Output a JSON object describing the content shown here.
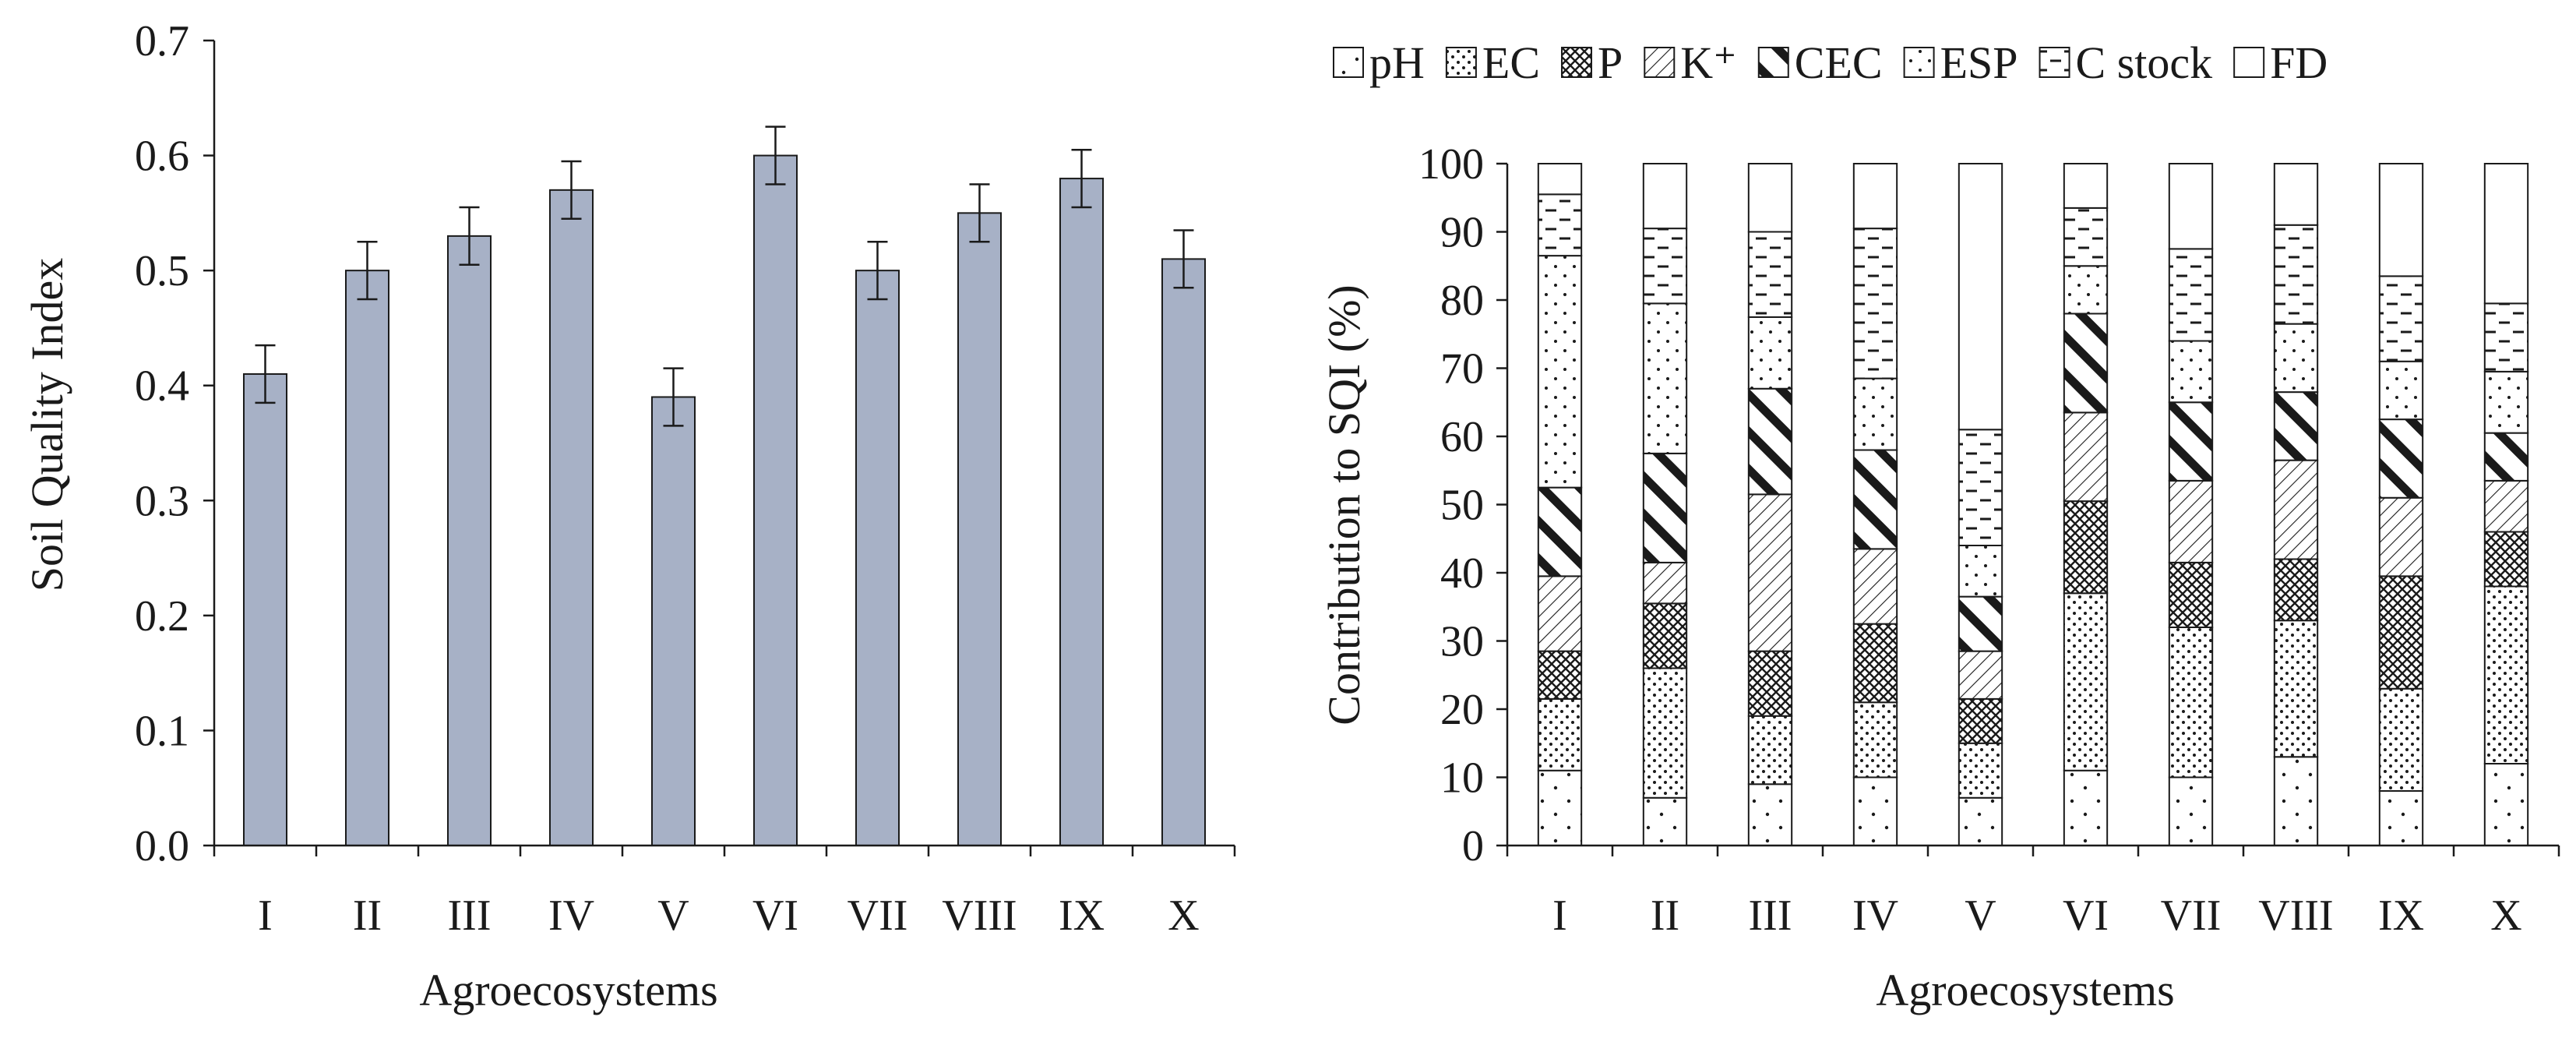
{
  "colors": {
    "bar_fill": "#a7b1c6",
    "bar_stroke": "#1a1a1a",
    "axis": "#1a1a1a",
    "background": "#ffffff"
  },
  "chart_data": [
    {
      "type": "bar",
      "title": "",
      "xlabel": "Agroecosystems",
      "ylabel": "Soil Quality Index",
      "ylim": [
        0.0,
        0.7
      ],
      "yticks": [
        "0.0",
        "0.1",
        "0.2",
        "0.3",
        "0.4",
        "0.5",
        "0.6",
        "0.7"
      ],
      "categories": [
        "I",
        "II",
        "III",
        "IV",
        "V",
        "VI",
        "VII",
        "VIII",
        "IX",
        "X"
      ],
      "values": [
        0.41,
        0.5,
        0.53,
        0.57,
        0.39,
        0.6,
        0.5,
        0.55,
        0.58,
        0.51
      ],
      "errors": [
        0.025,
        0.025,
        0.025,
        0.025,
        0.025,
        0.025,
        0.025,
        0.025,
        0.025,
        0.025
      ]
    },
    {
      "type": "bar",
      "stacked": true,
      "title": "",
      "xlabel": "Agroecosystems",
      "ylabel": "Contribution to SQI (%)",
      "ylim": [
        0,
        100
      ],
      "yticks": [
        "0",
        "10",
        "20",
        "30",
        "40",
        "50",
        "60",
        "70",
        "80",
        "90",
        "100"
      ],
      "categories": [
        "I",
        "II",
        "III",
        "IV",
        "V",
        "VI",
        "VII",
        "VIII",
        "IX",
        "X"
      ],
      "legend_position": "top",
      "series": [
        {
          "name": "pH",
          "pattern": "dots-sparse",
          "values": [
            11,
            7,
            9,
            10,
            7,
            11,
            10,
            13,
            8,
            12
          ]
        },
        {
          "name": "EC",
          "pattern": "dots-dense",
          "values": [
            10.5,
            19,
            10,
            11,
            8,
            26,
            22,
            20,
            15,
            26
          ]
        },
        {
          "name": "P",
          "pattern": "crosshatch",
          "values": [
            7,
            9.5,
            9.5,
            11.5,
            6.5,
            13.5,
            9.5,
            9,
            16.5,
            8
          ]
        },
        {
          "name": "K⁺",
          "pattern": "diagonal-thin",
          "values": [
            11,
            6,
            23,
            11,
            7,
            13,
            12,
            14.5,
            11.5,
            7.5
          ]
        },
        {
          "name": "CEC",
          "pattern": "diagonal-bold",
          "values": [
            13,
            16,
            15.5,
            14.5,
            8,
            14.5,
            11.5,
            10,
            11.5,
            7
          ]
        },
        {
          "name": "ESP",
          "pattern": "dots-small",
          "values": [
            34,
            22,
            10.5,
            10.5,
            7.5,
            7,
            9,
            10,
            8.5,
            9
          ]
        },
        {
          "name": "C stock",
          "pattern": "dashes",
          "values": [
            9,
            11,
            12.5,
            22,
            17,
            8.5,
            13.5,
            14.5,
            12.5,
            10
          ]
        },
        {
          "name": "FD",
          "pattern": "blank",
          "values": [
            4.5,
            9.5,
            10,
            9.5,
            39,
            6.5,
            12.5,
            9,
            16.5,
            20.5
          ]
        }
      ]
    }
  ]
}
